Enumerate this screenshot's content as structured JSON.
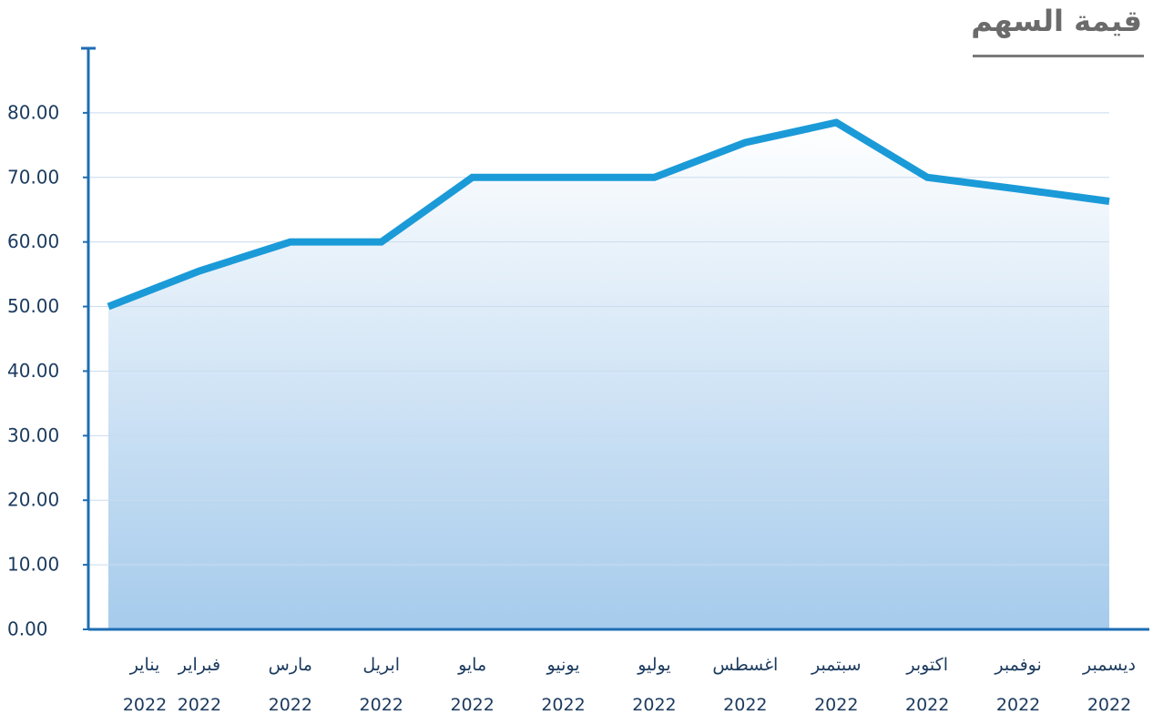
{
  "chart_data": {
    "type": "area",
    "title": "قيمة السهم",
    "categories": [
      "يناير 2022",
      "فبراير 2022",
      "مارس 2022",
      "ابريل 2022",
      "مايو 2022",
      "يونيو 2022",
      "يوليو 2022",
      "اغسطس 2022",
      "سبتمبر 2022",
      "اكتوبر 2022",
      "نوفمبر 2022",
      "ديسمبر 2022"
    ],
    "values": [
      50,
      55.5,
      60,
      60,
      70,
      70,
      70,
      75.4,
      78.5,
      70,
      68.2,
      66.3
    ],
    "color": "#1b9ad8",
    "ylim": [
      0,
      90
    ],
    "yticks": [
      {
        "value": 0,
        "label": "0.00"
      },
      {
        "value": 10,
        "label": "10.00"
      },
      {
        "value": 20,
        "label": "20.00"
      },
      {
        "value": 30,
        "label": "30.00"
      },
      {
        "value": 40,
        "label": "40.00"
      },
      {
        "value": 50,
        "label": "50.00"
      },
      {
        "value": 60,
        "label": "60.00"
      },
      {
        "value": 70,
        "label": "70.00"
      },
      {
        "value": 80,
        "label": "80.00"
      }
    ],
    "grid": true
  }
}
